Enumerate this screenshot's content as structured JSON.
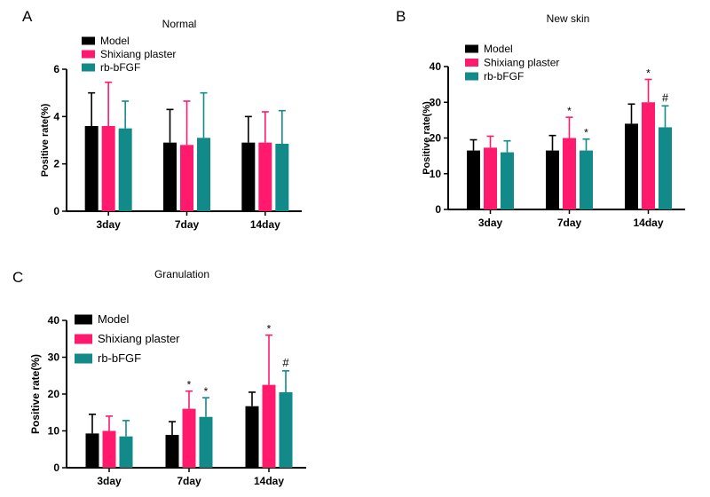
{
  "colors": {
    "model": "#000000",
    "shixiang": "#ff1a6e",
    "rbbfgf": "#138a8a"
  },
  "chart_data": [
    {
      "panel": "A",
      "type": "bar",
      "title": "Normal",
      "xlabel": "",
      "ylabel": "Positive rate(%)",
      "ylim": [
        0,
        6
      ],
      "yticks": [
        0,
        2,
        4,
        6
      ],
      "categories": [
        "3day",
        "7day",
        "14day"
      ],
      "legend_position": "top-left",
      "series": [
        {
          "name": "Model",
          "color_key": "model",
          "values": [
            3.6,
            2.9,
            2.9
          ],
          "errors": [
            1.4,
            1.4,
            1.1
          ],
          "annotations": [
            "",
            "",
            ""
          ]
        },
        {
          "name": "Shixiang plaster",
          "color_key": "shixiang",
          "values": [
            3.6,
            2.8,
            2.9
          ],
          "errors": [
            1.85,
            1.85,
            1.3
          ],
          "annotations": [
            "",
            "",
            ""
          ]
        },
        {
          "name": "rb-bFGF",
          "color_key": "rbbfgf",
          "values": [
            3.5,
            3.1,
            2.85
          ],
          "errors": [
            1.15,
            1.9,
            1.4
          ],
          "annotations": [
            "",
            "",
            ""
          ]
        }
      ]
    },
    {
      "panel": "B",
      "type": "bar",
      "title": "New skin",
      "xlabel": "",
      "ylabel": "Positive rate(%)",
      "ylim": [
        0,
        40
      ],
      "yticks": [
        0,
        10,
        20,
        30,
        40
      ],
      "categories": [
        "3day",
        "7day",
        "14day"
      ],
      "legend_position": "top-left",
      "series": [
        {
          "name": "Model",
          "color_key": "model",
          "values": [
            16.5,
            16.5,
            24
          ],
          "errors": [
            3,
            4.2,
            5.5
          ],
          "annotations": [
            "",
            "",
            ""
          ]
        },
        {
          "name": "Shixiang plaster",
          "color_key": "shixiang",
          "values": [
            17.3,
            20,
            30
          ],
          "errors": [
            3.2,
            5.8,
            6.4
          ],
          "annotations": [
            "",
            "*",
            "*"
          ]
        },
        {
          "name": "rb-bFGF",
          "color_key": "rbbfgf",
          "values": [
            16,
            16.5,
            23
          ],
          "errors": [
            3.2,
            3.2,
            6
          ],
          "annotations": [
            "",
            "*",
            "#"
          ]
        }
      ]
    },
    {
      "panel": "C",
      "type": "bar",
      "title": "Granulation",
      "xlabel": "",
      "ylabel": "Positive rate(%)",
      "ylim": [
        0,
        40
      ],
      "yticks": [
        0,
        10,
        20,
        30,
        40
      ],
      "categories": [
        "3day",
        "7day",
        "14day"
      ],
      "legend_position": "top-left",
      "series": [
        {
          "name": "Model",
          "color_key": "model",
          "values": [
            9.3,
            8.9,
            16.7
          ],
          "errors": [
            5.2,
            3.6,
            3.8
          ],
          "annotations": [
            "",
            "",
            ""
          ]
        },
        {
          "name": "Shixiang plaster",
          "color_key": "shixiang",
          "values": [
            10,
            16,
            22.5
          ],
          "errors": [
            4,
            4.8,
            13.5
          ],
          "annotations": [
            "",
            "*",
            "*"
          ]
        },
        {
          "name": "rb-bFGF",
          "color_key": "rbbfgf",
          "values": [
            8.5,
            13.8,
            20.5
          ],
          "errors": [
            4.3,
            5.2,
            5.8
          ],
          "annotations": [
            "",
            "*",
            "#"
          ]
        }
      ]
    }
  ]
}
